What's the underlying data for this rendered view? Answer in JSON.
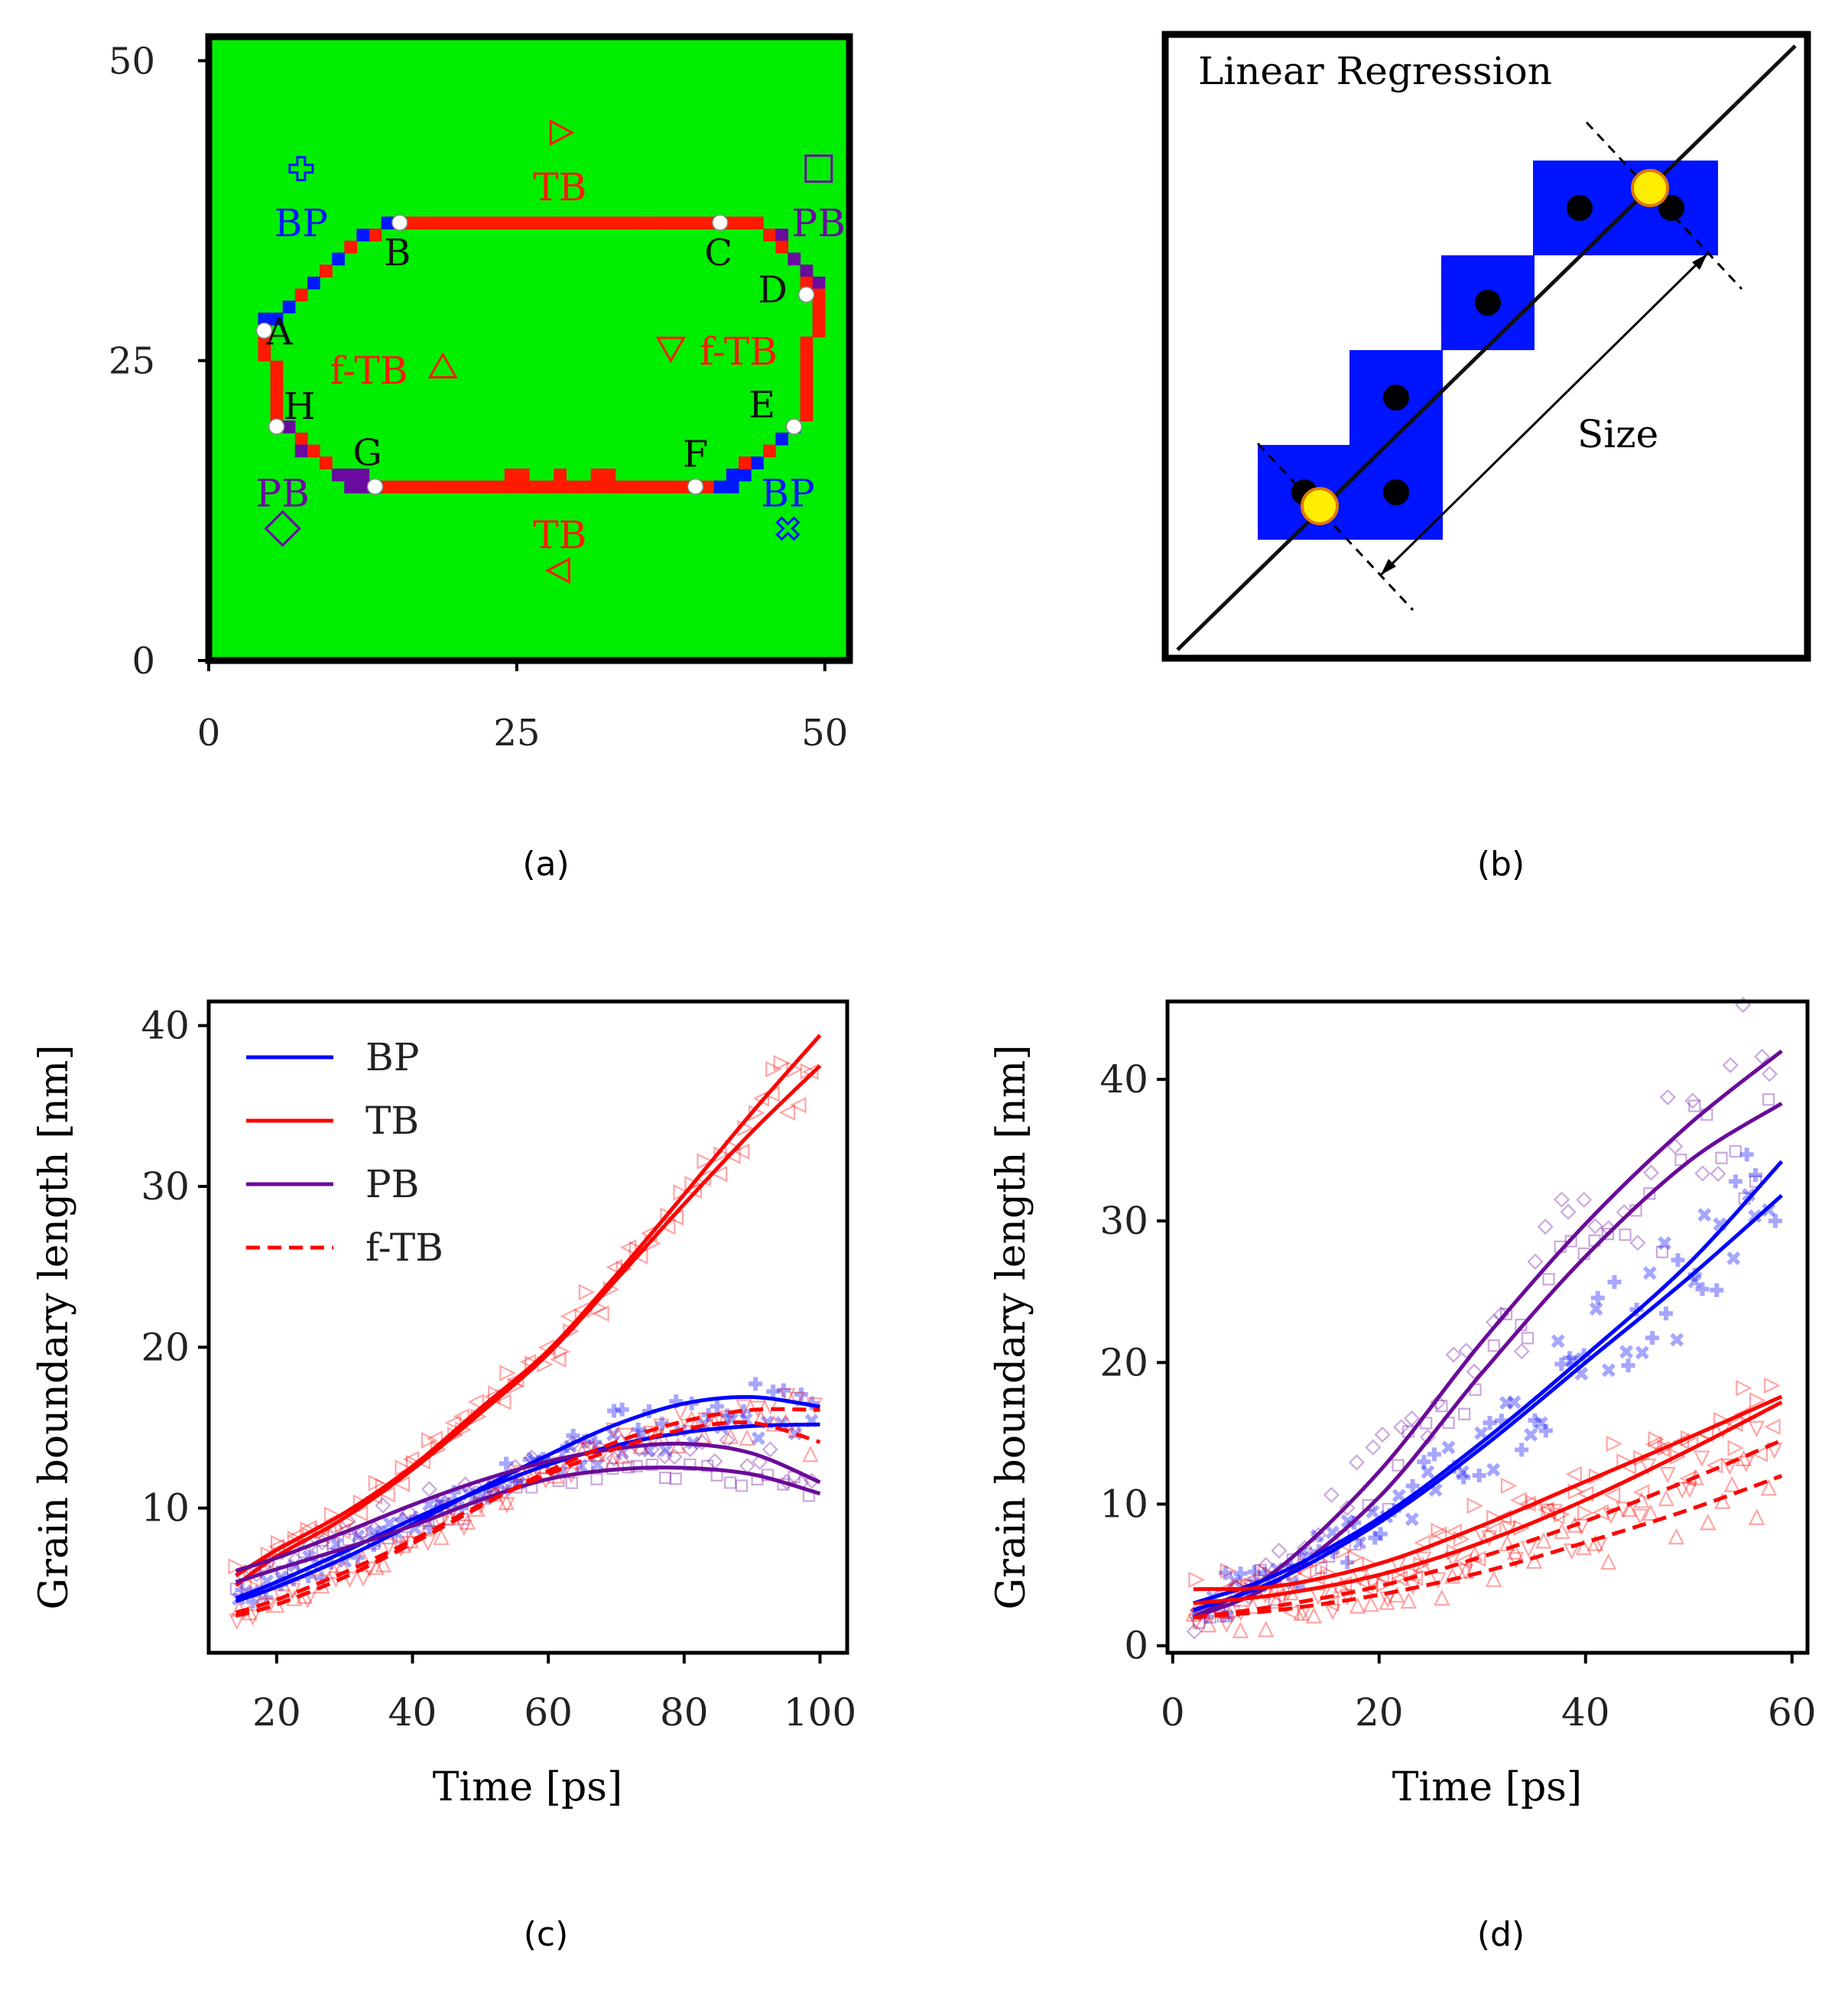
{
  "chart_data": [
    {
      "id": "a",
      "type": "heatmap",
      "caption": "(a)",
      "xlim": [
        0,
        52
      ],
      "ylim": [
        0,
        52
      ],
      "xticks": [
        0,
        25,
        50
      ],
      "yticks": [
        0,
        25,
        50
      ],
      "colors": {
        "grain": "#00ee00",
        "TB": "#ff1a00",
        "BP": "#0018ff",
        "PB": "#6a0aa0",
        "black": "#000000"
      },
      "boundary_points": [
        {
          "label": "A",
          "x": 4.5,
          "y": 27.5
        },
        {
          "label": "B",
          "x": 15.5,
          "y": 36.5
        },
        {
          "label": "C",
          "x": 41.5,
          "y": 36.5
        },
        {
          "label": "D",
          "x": 48.5,
          "y": 30.5
        },
        {
          "label": "E",
          "x": 47.5,
          "y": 19.5
        },
        {
          "label": "F",
          "x": 39.5,
          "y": 14.5
        },
        {
          "label": "G",
          "x": 13.5,
          "y": 14.5
        },
        {
          "label": "H",
          "x": 5.5,
          "y": 19.5
        }
      ],
      "boundary_labels": [
        {
          "text": "BP",
          "color": "BP",
          "x": 7.5,
          "y": 36.5,
          "marker": "plus-icon",
          "mx": 7.5,
          "my": 41
        },
        {
          "text": "TB",
          "color": "TB",
          "x": 28.5,
          "y": 39.5,
          "marker": "triangle-right-icon",
          "mx": 28.5,
          "my": 44
        },
        {
          "text": "PB",
          "color": "PB",
          "x": 49.5,
          "y": 36.5,
          "marker": "square-icon",
          "mx": 49.5,
          "my": 41
        },
        {
          "text": "f-TB",
          "color": "TB",
          "x": 13,
          "y": 24.2,
          "marker": "triangle-up-icon",
          "mx": 19,
          "my": 24.5
        },
        {
          "text": "f-TB",
          "color": "TB",
          "x": 43,
          "y": 25.8,
          "marker": "triangle-down-icon",
          "mx": 37.5,
          "my": 26
        },
        {
          "text": "PB",
          "color": "PB",
          "x": 6,
          "y": 14,
          "marker": "diamond-icon",
          "mx": 6,
          "my": 11
        },
        {
          "text": "TB",
          "color": "TB",
          "x": 28.5,
          "y": 10.5,
          "marker": "triangle-left-icon",
          "mx": 28.5,
          "my": 7.5
        },
        {
          "text": "BP",
          "color": "BP",
          "x": 47,
          "y": 14,
          "marker": "x-icon",
          "mx": 47,
          "my": 11
        }
      ]
    },
    {
      "id": "b",
      "type": "diagram",
      "caption": "(b)",
      "title": "Linear Regression",
      "size_label": "Size",
      "colors": {
        "pixel": "#0014ff",
        "endpoint": "#ffee00",
        "endpoint_edge": "#e07a00"
      },
      "pixels": [
        [
          0,
          0
        ],
        [
          1,
          0
        ],
        [
          1,
          1
        ],
        [
          2,
          2
        ],
        [
          3,
          3
        ],
        [
          4,
          3
        ]
      ],
      "centers": [
        [
          0,
          0
        ],
        [
          1,
          0
        ],
        [
          1,
          1
        ],
        [
          2,
          2
        ],
        [
          3,
          3
        ],
        [
          4,
          3
        ]
      ]
    },
    {
      "id": "c",
      "type": "line",
      "caption": "(c)",
      "xlabel": "Time [ps]",
      "ylabel": "Grain boundary length [nm]",
      "xlim": [
        10,
        104
      ],
      "ylim": [
        1,
        41.5
      ],
      "xticks": [
        20,
        40,
        60,
        80,
        100
      ],
      "yticks": [
        10,
        20,
        30,
        40
      ],
      "legend": [
        {
          "label": "BP",
          "color": "#0000ff",
          "dashed": false
        },
        {
          "label": "TB",
          "color": "#ff0000",
          "dashed": false
        },
        {
          "label": "PB",
          "color": "#6a0a9a",
          "dashed": false
        },
        {
          "label": "f-TB",
          "color": "#ff0000",
          "dashed": true
        }
      ],
      "series": [
        {
          "name": "TB",
          "color": "#ff0000",
          "dashed": false,
          "x": [
            14,
            20,
            30,
            40,
            50,
            60,
            70,
            80,
            90,
            100
          ],
          "y": [
            5.8,
            7.4,
            9.7,
            12.6,
            16.2,
            19.8,
            24.5,
            29.5,
            34.6,
            39.4
          ]
        },
        {
          "name": "TB",
          "color": "#ff0000",
          "dashed": false,
          "x": [
            14,
            20,
            30,
            40,
            50,
            60,
            70,
            80,
            90,
            100
          ],
          "y": [
            5.2,
            7.0,
            9.4,
            12.4,
            15.9,
            19.6,
            24.2,
            28.9,
            33.4,
            37.5
          ]
        },
        {
          "name": "BP",
          "color": "#0000ff",
          "dashed": false,
          "x": [
            14,
            20,
            30,
            40,
            50,
            60,
            70,
            80,
            90,
            100
          ],
          "y": [
            4.2,
            5.1,
            6.9,
            9.0,
            11.2,
            13.3,
            15.2,
            16.5,
            16.9,
            16.3
          ]
        },
        {
          "name": "BP",
          "color": "#0000ff",
          "dashed": false,
          "x": [
            14,
            20,
            30,
            40,
            50,
            60,
            70,
            80,
            90,
            100
          ],
          "y": [
            4.4,
            5.4,
            7.3,
            9.3,
            11.1,
            12.7,
            13.9,
            14.7,
            15.1,
            15.2
          ]
        },
        {
          "name": "PB",
          "color": "#6a0a9a",
          "dashed": false,
          "x": [
            14,
            20,
            30,
            40,
            50,
            60,
            70,
            80,
            90,
            100
          ],
          "y": [
            6.1,
            6.9,
            8.5,
            10.2,
            11.7,
            12.9,
            13.7,
            14.0,
            13.4,
            11.6
          ]
        },
        {
          "name": "PB",
          "color": "#6a0a9a",
          "dashed": false,
          "x": [
            14,
            20,
            30,
            40,
            50,
            60,
            70,
            80,
            90,
            100
          ],
          "y": [
            5.4,
            6.2,
            7.5,
            8.9,
            10.5,
            11.8,
            12.4,
            12.5,
            12.1,
            10.9
          ]
        },
        {
          "name": "f-TB",
          "color": "#ff0000",
          "dashed": true,
          "x": [
            14,
            20,
            30,
            40,
            50,
            60,
            70,
            80,
            90,
            100
          ],
          "y": [
            3.3,
            4.0,
            5.7,
            7.8,
            10.1,
            12.3,
            14.1,
            15.4,
            16.1,
            16.1
          ]
        },
        {
          "name": "f-TB",
          "color": "#ff0000",
          "dashed": true,
          "x": [
            14,
            20,
            30,
            40,
            50,
            60,
            70,
            80,
            90,
            100
          ],
          "y": [
            3.5,
            4.3,
            6.0,
            8.0,
            10.2,
            12.1,
            13.7,
            14.9,
            15.3,
            14.1
          ]
        }
      ]
    },
    {
      "id": "d",
      "type": "line",
      "caption": "(d)",
      "xlabel": "Time [ps]",
      "ylabel": "Grain boundary length [nm]",
      "xlim": [
        -0.5,
        61.5
      ],
      "ylim": [
        -0.5,
        45.5
      ],
      "xticks": [
        0,
        20,
        40,
        60
      ],
      "yticks": [
        0,
        10,
        20,
        30,
        40
      ],
      "series": [
        {
          "name": "PB",
          "color": "#6a0a9a",
          "dashed": false,
          "x": [
            2,
            10,
            20,
            30,
            40,
            50,
            59
          ],
          "y": [
            2.0,
            5.3,
            12.3,
            21.5,
            29.8,
            36.8,
            42.0
          ]
        },
        {
          "name": "PB",
          "color": "#6a0a9a",
          "dashed": false,
          "x": [
            2,
            10,
            20,
            30,
            40,
            50,
            59
          ],
          "y": [
            2.0,
            4.5,
            10.5,
            19.3,
            27.5,
            34.2,
            38.3
          ]
        },
        {
          "name": "BP",
          "color": "#0000ff",
          "dashed": false,
          "x": [
            2,
            10,
            20,
            30,
            40,
            50,
            59
          ],
          "y": [
            3.0,
            5.0,
            9.0,
            14.4,
            20.5,
            27.0,
            34.2
          ]
        },
        {
          "name": "BP",
          "color": "#0000ff",
          "dashed": false,
          "x": [
            2,
            10,
            20,
            30,
            40,
            50,
            59
          ],
          "y": [
            2.5,
            4.6,
            8.7,
            14.0,
            20.0,
            26.0,
            31.8
          ]
        },
        {
          "name": "TB",
          "color": "#ff0000",
          "dashed": false,
          "x": [
            2,
            10,
            20,
            30,
            40,
            50,
            59
          ],
          "y": [
            4.0,
            4.2,
            5.8,
            8.5,
            11.6,
            14.7,
            17.6
          ]
        },
        {
          "name": "TB",
          "color": "#ff0000",
          "dashed": false,
          "x": [
            2,
            10,
            20,
            30,
            40,
            50,
            59
          ],
          "y": [
            3.0,
            3.6,
            5.0,
            7.3,
            10.3,
            13.8,
            17.2
          ]
        },
        {
          "name": "f-TB",
          "color": "#ff0000",
          "dashed": true,
          "x": [
            2,
            10,
            20,
            30,
            40,
            50,
            59
          ],
          "y": [
            2.0,
            2.8,
            4.2,
            6.3,
            8.8,
            11.7,
            14.5
          ]
        },
        {
          "name": "f-TB",
          "color": "#ff0000",
          "dashed": true,
          "x": [
            2,
            10,
            20,
            30,
            40,
            50,
            59
          ],
          "y": [
            2.0,
            2.5,
            3.6,
            5.2,
            7.3,
            9.6,
            12.0
          ]
        }
      ]
    }
  ]
}
